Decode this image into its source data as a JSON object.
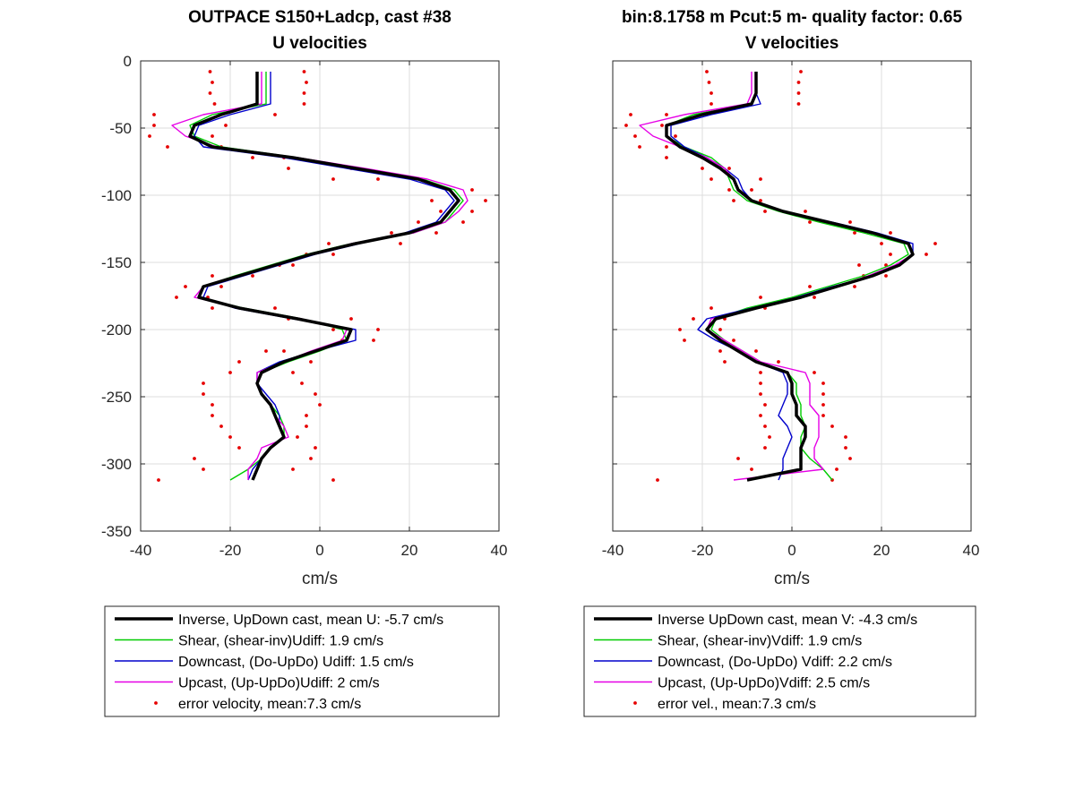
{
  "colors": {
    "inverse": "#000000",
    "shear": "#00cc00",
    "downcast": "#0000cc",
    "upcast": "#e600e6",
    "error": "#e60000"
  },
  "chart_data": [
    {
      "type": "line",
      "title": "OUTPACE S150+Ladcp, cast #38",
      "subtitle": "U velocities",
      "xlabel": "cm/s",
      "ylabel": "",
      "xlim": [
        -40,
        40
      ],
      "ylim": [
        -350,
        0
      ],
      "xticks": [
        "-40",
        "-20",
        "0",
        "20",
        "40"
      ],
      "yticks": [
        "0",
        "-50",
        "-100",
        "-150",
        "-200",
        "-250",
        "-300",
        "-350"
      ],
      "grid": true,
      "legend_position": "below",
      "legend": [
        "Inverse, UpDown cast, mean U:  -5.7 cm/s",
        "Shear, (shear-inv)Udiff:  1.9 cm/s",
        "Downcast, (Do-UpDo) Udiff:  1.5 cm/s",
        "Upcast, (Up-UpDo)Udiff:  2 cm/s",
        "error velocity, mean:7.3 cm/s"
      ],
      "depth": [
        -8,
        -16,
        -24,
        -32,
        -40,
        -48,
        -56,
        -64,
        -72,
        -80,
        -88,
        -96,
        -104,
        -112,
        -120,
        -128,
        -136,
        -144,
        -152,
        -160,
        -168,
        -176,
        -184,
        -192,
        -200,
        -208,
        -216,
        -224,
        -232,
        -240,
        -248,
        -256,
        -264,
        -272,
        -280,
        -288,
        -296,
        -304,
        -312
      ],
      "series": [
        {
          "key": "inverse",
          "x": [
            -14,
            -14,
            -14,
            -14,
            -22,
            -28,
            -29,
            -24,
            -6,
            8,
            22,
            29,
            31,
            29,
            27,
            20,
            8,
            -2,
            -10,
            -18,
            -26,
            -27,
            -18,
            -5,
            7,
            6,
            -1,
            -8,
            -13,
            -14,
            -13,
            -11,
            -10,
            -9,
            -8,
            -11,
            -13,
            -14,
            -15
          ]
        },
        {
          "key": "shear",
          "x": [
            -12,
            -12,
            -12,
            -12,
            -24,
            -29,
            -28,
            -22,
            -5,
            9,
            23,
            30,
            32,
            30,
            28,
            21,
            7,
            -3,
            -11,
            -19,
            -26,
            -27,
            -17,
            -4,
            5,
            6,
            0,
            -7,
            -13,
            -14,
            -13,
            -11,
            -9,
            -8,
            -8,
            -11,
            -13,
            -16,
            -20
          ]
        },
        {
          "key": "downcast",
          "x": [
            -11,
            -11,
            -11,
            -11,
            -20,
            -27,
            -28,
            -26,
            -8,
            6,
            20,
            28,
            30,
            28,
            26,
            19,
            9,
            -1,
            -9,
            -17,
            -25,
            -26,
            -19,
            -6,
            8,
            8,
            -1,
            -9,
            -14,
            -14,
            -12,
            -10,
            -9,
            -9,
            -8,
            -11,
            -13,
            -15,
            -16
          ]
        },
        {
          "key": "upcast",
          "x": [
            -13,
            -13,
            -13,
            -13,
            -26,
            -33,
            -30,
            -23,
            -5,
            10,
            24,
            32,
            33,
            31,
            28,
            21,
            7,
            -2,
            -10,
            -18,
            -26,
            -28,
            -18,
            -4,
            6,
            5,
            -2,
            -8,
            -14,
            -14,
            -13,
            -11,
            -10,
            -8,
            -7,
            -13,
            -14,
            -16,
            -16
          ]
        }
      ],
      "error_points": [
        {
          "x": -24.5,
          "y": -8
        },
        {
          "x": -3.5,
          "y": -8
        },
        {
          "x": -24,
          "y": -16
        },
        {
          "x": -3,
          "y": -16
        },
        {
          "x": -24.5,
          "y": -24
        },
        {
          "x": -3.5,
          "y": -24
        },
        {
          "x": -23.5,
          "y": -32
        },
        {
          "x": -3.5,
          "y": -32
        },
        {
          "x": -37,
          "y": -40
        },
        {
          "x": -10,
          "y": -40
        },
        {
          "x": -37,
          "y": -48
        },
        {
          "x": -21,
          "y": -48
        },
        {
          "x": -38,
          "y": -56
        },
        {
          "x": -24,
          "y": -56
        },
        {
          "x": -34,
          "y": -64
        },
        {
          "x": -22,
          "y": -64
        },
        {
          "x": -15,
          "y": -72
        },
        {
          "x": -8,
          "y": -72
        },
        {
          "x": -7,
          "y": -80
        },
        {
          "x": 7,
          "y": -80
        },
        {
          "x": 3,
          "y": -88
        },
        {
          "x": 13,
          "y": -88
        },
        {
          "x": 29,
          "y": -96
        },
        {
          "x": 34,
          "y": -96
        },
        {
          "x": 25,
          "y": -104
        },
        {
          "x": 37,
          "y": -104
        },
        {
          "x": 27,
          "y": -112
        },
        {
          "x": 34,
          "y": -112
        },
        {
          "x": 22,
          "y": -120
        },
        {
          "x": 32,
          "y": -120
        },
        {
          "x": 16,
          "y": -128
        },
        {
          "x": 26,
          "y": -128
        },
        {
          "x": 2,
          "y": -136
        },
        {
          "x": 18,
          "y": -136
        },
        {
          "x": -3,
          "y": -144
        },
        {
          "x": 3,
          "y": -144
        },
        {
          "x": -9,
          "y": -152
        },
        {
          "x": -6,
          "y": -152
        },
        {
          "x": -24,
          "y": -160
        },
        {
          "x": -15,
          "y": -160
        },
        {
          "x": -30,
          "y": -168
        },
        {
          "x": -22,
          "y": -168
        },
        {
          "x": -32,
          "y": -176
        },
        {
          "x": -25,
          "y": -176
        },
        {
          "x": -24,
          "y": -184
        },
        {
          "x": -10,
          "y": -184
        },
        {
          "x": -7,
          "y": -192
        },
        {
          "x": 7,
          "y": -192
        },
        {
          "x": 3,
          "y": -200
        },
        {
          "x": 13,
          "y": -200
        },
        {
          "x": 5,
          "y": -208
        },
        {
          "x": 12,
          "y": -208
        },
        {
          "x": -12,
          "y": -216
        },
        {
          "x": -8,
          "y": -216
        },
        {
          "x": -18,
          "y": -224
        },
        {
          "x": -2,
          "y": -224
        },
        {
          "x": -20,
          "y": -232
        },
        {
          "x": -6,
          "y": -232
        },
        {
          "x": -26,
          "y": -240
        },
        {
          "x": -4,
          "y": -240
        },
        {
          "x": -26,
          "y": -248
        },
        {
          "x": -1,
          "y": -248
        },
        {
          "x": -24,
          "y": -256
        },
        {
          "x": 0,
          "y": -256
        },
        {
          "x": -24,
          "y": -264
        },
        {
          "x": -3,
          "y": -264
        },
        {
          "x": -22,
          "y": -272
        },
        {
          "x": -3,
          "y": -272
        },
        {
          "x": -20,
          "y": -280
        },
        {
          "x": -5,
          "y": -280
        },
        {
          "x": -18,
          "y": -288
        },
        {
          "x": -1,
          "y": -288
        },
        {
          "x": -28,
          "y": -296
        },
        {
          "x": -2,
          "y": -296
        },
        {
          "x": -26,
          "y": -304
        },
        {
          "x": -6,
          "y": -304
        },
        {
          "x": -36,
          "y": -312
        },
        {
          "x": 3,
          "y": -312
        }
      ]
    },
    {
      "type": "line",
      "title": "bin:8.1758 m  Pcut:5 m- quality factor:  0.65",
      "subtitle": "V velocities",
      "xlabel": "cm/s",
      "ylabel": "",
      "xlim": [
        -40,
        40
      ],
      "ylim": [
        -350,
        0
      ],
      "xticks": [
        "-40",
        "-20",
        "0",
        "20",
        "40"
      ],
      "yticks": [],
      "grid": true,
      "legend_position": "below",
      "legend": [
        "Inverse UpDown cast, mean V:  -4.3 cm/s",
        "Shear, (shear-inv)Vdiff:  1.9 cm/s",
        "Downcast, (Do-UpDo) Vdiff:  2.2 cm/s",
        "Upcast, (Up-UpDo)Vdiff:  2.5 cm/s",
        "error vel., mean:7.3 cm/s"
      ],
      "depth": [
        -8,
        -16,
        -24,
        -32,
        -40,
        -48,
        -56,
        -64,
        -72,
        -80,
        -88,
        -96,
        -104,
        -112,
        -120,
        -128,
        -136,
        -144,
        -152,
        -160,
        -168,
        -176,
        -184,
        -192,
        -200,
        -208,
        -216,
        -224,
        -232,
        -240,
        -248,
        -256,
        -264,
        -272,
        -280,
        -288,
        -296,
        -304,
        -312
      ],
      "series": [
        {
          "key": "inverse",
          "x": [
            -8,
            -8,
            -8,
            -9,
            -20,
            -28,
            -28,
            -25,
            -20,
            -16,
            -13,
            -12,
            -9,
            -2,
            8,
            18,
            26,
            27,
            24,
            18,
            10,
            2,
            -8,
            -17,
            -19,
            -16,
            -12,
            -8,
            -1,
            0,
            0,
            1,
            1,
            3,
            3,
            2,
            2,
            2,
            -10
          ]
        },
        {
          "key": "shear",
          "x": [
            -8,
            -8,
            -8,
            -9,
            -22,
            -28,
            -28,
            -24,
            -18,
            -15,
            -14,
            -13,
            -10,
            -3,
            6,
            16,
            25,
            26,
            22,
            16,
            8,
            0,
            -10,
            -17,
            -18,
            -15,
            -11,
            -7,
            -1,
            1,
            1,
            2,
            2,
            3,
            2,
            2,
            4,
            7,
            9
          ]
        },
        {
          "key": "downcast",
          "x": [
            -8,
            -8,
            -8,
            -7,
            -18,
            -27,
            -27,
            -24,
            -19,
            -15,
            -12,
            -11,
            -9,
            -2,
            9,
            19,
            27,
            27,
            24,
            18,
            9,
            1,
            -9,
            -19,
            -21,
            -17,
            -12,
            -8,
            -2,
            -1,
            -1,
            -2,
            -3,
            -1,
            0,
            -1,
            -2,
            -2,
            -3
          ]
        },
        {
          "key": "upcast",
          "x": [
            -9,
            -9,
            -9,
            -10,
            -24,
            -34,
            -31,
            -25,
            -19,
            -15,
            -13,
            -12,
            -9,
            -2,
            8,
            18,
            26,
            27,
            23,
            17,
            10,
            2,
            -8,
            -18,
            -19,
            -15,
            -11,
            -7,
            3,
            4,
            4,
            4,
            6,
            6,
            6,
            5,
            5,
            7,
            -13
          ]
        }
      ],
      "error_points": [
        {
          "x": -19,
          "y": -8
        },
        {
          "x": 2,
          "y": -8
        },
        {
          "x": -18.5,
          "y": -16
        },
        {
          "x": 1.5,
          "y": -16
        },
        {
          "x": -18,
          "y": -24
        },
        {
          "x": 1.5,
          "y": -24
        },
        {
          "x": -18,
          "y": -32
        },
        {
          "x": 1.5,
          "y": -32
        },
        {
          "x": -36,
          "y": -40
        },
        {
          "x": -28,
          "y": -40
        },
        {
          "x": -37,
          "y": -48
        },
        {
          "x": -29,
          "y": -48
        },
        {
          "x": -35,
          "y": -56
        },
        {
          "x": -26,
          "y": -56
        },
        {
          "x": -34,
          "y": -64
        },
        {
          "x": -28,
          "y": -64
        },
        {
          "x": -28,
          "y": -72
        },
        {
          "x": -20,
          "y": -72
        },
        {
          "x": -20,
          "y": -80
        },
        {
          "x": -14,
          "y": -80
        },
        {
          "x": -18,
          "y": -88
        },
        {
          "x": -7,
          "y": -88
        },
        {
          "x": -14,
          "y": -96
        },
        {
          "x": -9,
          "y": -96
        },
        {
          "x": -13,
          "y": -104
        },
        {
          "x": -7,
          "y": -104
        },
        {
          "x": -6,
          "y": -112
        },
        {
          "x": 3,
          "y": -112
        },
        {
          "x": 4,
          "y": -120
        },
        {
          "x": 13,
          "y": -120
        },
        {
          "x": 14,
          "y": -128
        },
        {
          "x": 22,
          "y": -128
        },
        {
          "x": 20,
          "y": -136
        },
        {
          "x": 32,
          "y": -136
        },
        {
          "x": 22,
          "y": -144
        },
        {
          "x": 30,
          "y": -144
        },
        {
          "x": 15,
          "y": -152
        },
        {
          "x": 21,
          "y": -152
        },
        {
          "x": 16,
          "y": -160
        },
        {
          "x": 21,
          "y": -160
        },
        {
          "x": 4,
          "y": -168
        },
        {
          "x": 14,
          "y": -168
        },
        {
          "x": -7,
          "y": -176
        },
        {
          "x": 5,
          "y": -176
        },
        {
          "x": -18,
          "y": -184
        },
        {
          "x": -6,
          "y": -184
        },
        {
          "x": -22,
          "y": -192
        },
        {
          "x": -15,
          "y": -192
        },
        {
          "x": -25,
          "y": -200
        },
        {
          "x": -16,
          "y": -200
        },
        {
          "x": -24,
          "y": -208
        },
        {
          "x": -13,
          "y": -208
        },
        {
          "x": -16,
          "y": -216
        },
        {
          "x": -8,
          "y": -216
        },
        {
          "x": -15,
          "y": -224
        },
        {
          "x": -3,
          "y": -224
        },
        {
          "x": -7,
          "y": -232
        },
        {
          "x": 5,
          "y": -232
        },
        {
          "x": -7,
          "y": -240
        },
        {
          "x": 7,
          "y": -240
        },
        {
          "x": -7,
          "y": -248
        },
        {
          "x": 7,
          "y": -248
        },
        {
          "x": -6,
          "y": -256
        },
        {
          "x": 7,
          "y": -256
        },
        {
          "x": -7,
          "y": -264
        },
        {
          "x": 7,
          "y": -264
        },
        {
          "x": -6,
          "y": -272
        },
        {
          "x": 9,
          "y": -272
        },
        {
          "x": -5,
          "y": -280
        },
        {
          "x": 12,
          "y": -280
        },
        {
          "x": -6,
          "y": -288
        },
        {
          "x": 12,
          "y": -288
        },
        {
          "x": -12,
          "y": -296
        },
        {
          "x": 13,
          "y": -296
        },
        {
          "x": -9,
          "y": -304
        },
        {
          "x": 10,
          "y": -304
        },
        {
          "x": -30,
          "y": -312
        },
        {
          "x": 9,
          "y": -312
        }
      ]
    }
  ]
}
